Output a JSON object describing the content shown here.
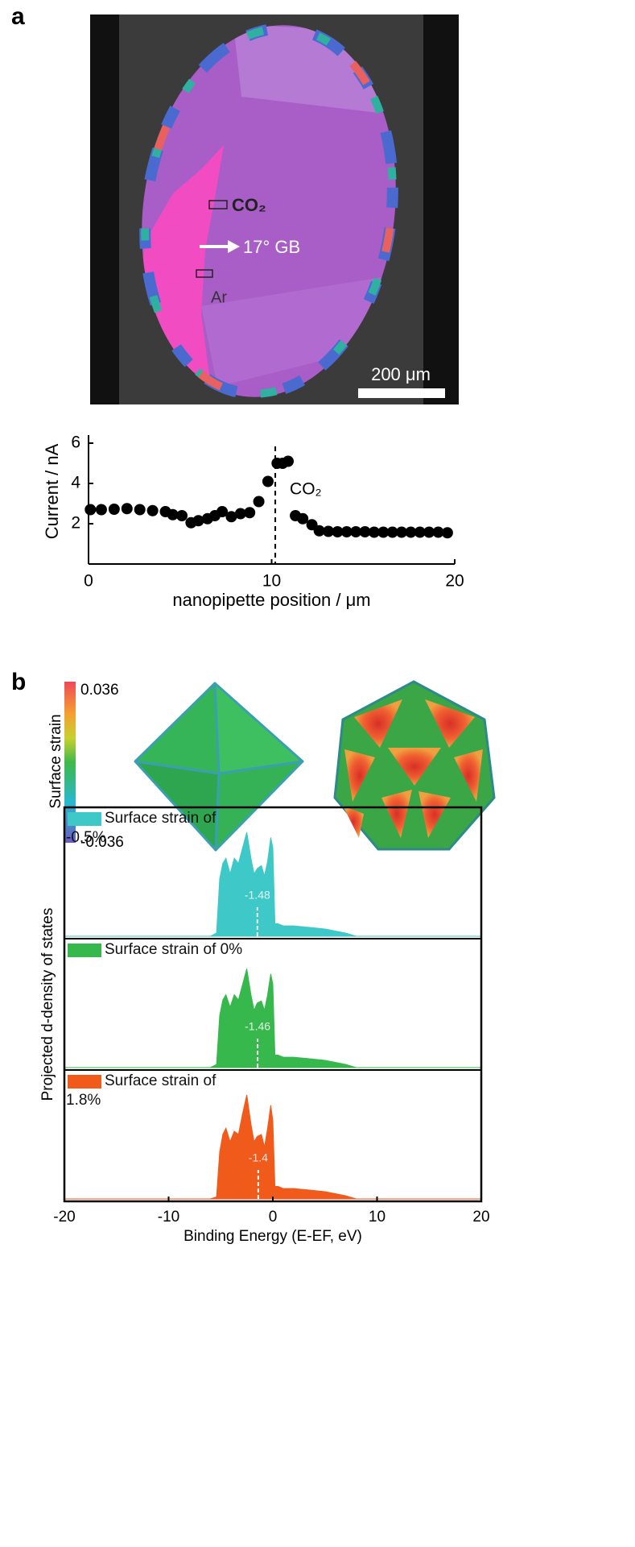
{
  "panels": {
    "a": {
      "label": "a",
      "image": {
        "labels": [
          "CO₂",
          "17° GB",
          "Ar"
        ],
        "scale_bar": "200 μm"
      }
    },
    "b": {
      "label": "b",
      "colorbar": {
        "label": "Surface strain",
        "min": -0.036,
        "max": 0.036
      }
    }
  },
  "chart_data": [
    {
      "type": "scatter",
      "xlabel": "nanopipette position / μm",
      "ylabel": "Current / nA",
      "x": [
        0.1,
        0.7,
        1.4,
        2.1,
        2.8,
        3.5,
        4.2,
        4.6,
        5.1,
        5.6,
        6.0,
        6.5,
        6.9,
        7.3,
        7.8,
        8.3,
        8.8,
        9.3,
        9.8,
        10.3,
        10.6,
        10.9,
        11.3,
        11.7,
        12.2,
        12.6,
        13.1,
        13.6,
        14.1,
        14.6,
        15.1,
        15.6,
        16.1,
        16.6,
        17.1,
        17.6,
        18.1,
        18.6,
        19.1,
        19.6
      ],
      "values": [
        2.7,
        2.7,
        2.72,
        2.75,
        2.7,
        2.65,
        2.6,
        2.45,
        2.4,
        2.05,
        2.15,
        2.25,
        2.4,
        2.6,
        2.35,
        2.5,
        2.55,
        3.1,
        4.1,
        5.0,
        5.0,
        5.1,
        2.4,
        2.25,
        1.95,
        1.65,
        1.62,
        1.6,
        1.6,
        1.6,
        1.6,
        1.58,
        1.58,
        1.58,
        1.58,
        1.58,
        1.58,
        1.58,
        1.58,
        1.55
      ],
      "color": "#000000",
      "xlim": [
        0,
        20
      ],
      "ylim": [
        0,
        6.4
      ],
      "xticks": [
        0,
        10,
        20
      ],
      "yticks": [
        2,
        4,
        6
      ],
      "vline": 10.2,
      "annotation": "CO₂"
    },
    {
      "type": "area",
      "xlabel": "Binding Energy (E-EF, eV)",
      "ylabel": "Projected d-density of states",
      "x": [
        -20,
        -6,
        -5.4,
        -5.1,
        -4.8,
        -4.5,
        -4.1,
        -3.7,
        -3.3,
        -2.9,
        -2.5,
        -2.1,
        -1.8,
        -1.5,
        -1.1,
        -0.8,
        -0.5,
        -0.2,
        0,
        0.2,
        0.5,
        1,
        2,
        3,
        4,
        5,
        6,
        7,
        8,
        20
      ],
      "xlim": [
        -20,
        20
      ],
      "xticks": [
        -20,
        -10,
        0,
        10,
        20
      ],
      "ylim": [
        0,
        1.2
      ],
      "series": [
        {
          "name": "Surface strain of -0.5%",
          "color": "#3ec8c8",
          "center": -1.48,
          "values": [
            0,
            0,
            0.03,
            0.55,
            0.7,
            0.75,
            0.6,
            0.75,
            0.7,
            0.85,
            1.0,
            0.75,
            0.6,
            0.65,
            0.68,
            0.58,
            0.72,
            0.95,
            0.85,
            0.12,
            0.12,
            0.1,
            0.1,
            0.09,
            0.08,
            0.07,
            0.05,
            0.03,
            0,
            0
          ]
        },
        {
          "name": "Surface strain of 0%",
          "color": "#36b84c",
          "center": -1.46,
          "values": [
            0,
            0,
            0.03,
            0.5,
            0.65,
            0.7,
            0.58,
            0.7,
            0.65,
            0.8,
            0.95,
            0.7,
            0.55,
            0.62,
            0.64,
            0.55,
            0.7,
            0.9,
            0.8,
            0.12,
            0.12,
            0.1,
            0.1,
            0.09,
            0.08,
            0.07,
            0.05,
            0.03,
            0,
            0
          ]
        },
        {
          "name": "Surface strain of 1.8%",
          "color": "#f05a1a",
          "center": -1.4,
          "values": [
            0,
            0,
            0.02,
            0.45,
            0.62,
            0.68,
            0.55,
            0.65,
            0.62,
            0.82,
            1.0,
            0.72,
            0.55,
            0.6,
            0.62,
            0.5,
            0.68,
            0.9,
            0.75,
            0.12,
            0.12,
            0.1,
            0.1,
            0.09,
            0.08,
            0.07,
            0.05,
            0.03,
            0,
            0
          ]
        }
      ]
    }
  ]
}
